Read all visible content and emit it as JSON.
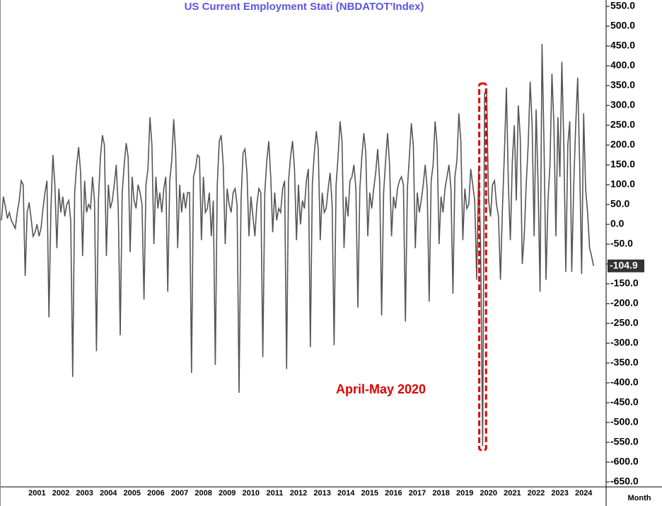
{
  "chart_data": {
    "type": "line",
    "title": "US  Current  Employment  Stati  (NBDATOT'Index)",
    "x_label": "Month",
    "annotation": "April-May 2020",
    "color": "#555555",
    "ylim": [
      -650,
      550
    ],
    "yticks": [
      {
        "value": 550,
        "label": "550.0"
      },
      {
        "value": 500,
        "label": "500.0"
      },
      {
        "value": 450,
        "label": "450.0"
      },
      {
        "value": 400,
        "label": "400.0"
      },
      {
        "value": 350,
        "label": "350.0"
      },
      {
        "value": 300,
        "label": "300.0"
      },
      {
        "value": 250,
        "label": "250.0"
      },
      {
        "value": 200,
        "label": "200.0"
      },
      {
        "value": 150,
        "label": "150.0"
      },
      {
        "value": 100,
        "label": "100.0"
      },
      {
        "value": 50,
        "label": "50.0"
      },
      {
        "value": 0,
        "label": "0.0"
      },
      {
        "value": -50,
        "label": "-50.0"
      },
      {
        "value": -100,
        "label": "-100.0"
      },
      {
        "value": -150,
        "label": "-150.0"
      },
      {
        "value": -200,
        "label": "-200.0"
      },
      {
        "value": -250,
        "label": "-250.0"
      },
      {
        "value": -300,
        "label": "-300.0"
      },
      {
        "value": -350,
        "label": "-350.0"
      },
      {
        "value": -400,
        "label": "-400.0"
      },
      {
        "value": -450,
        "label": "-450.0"
      },
      {
        "value": -500,
        "label": "-500.0"
      },
      {
        "value": -550,
        "label": "-550.0"
      },
      {
        "value": -600,
        "label": "-600.0"
      },
      {
        "value": -650,
        "label": "-650.0"
      }
    ],
    "categories": [
      null,
      null,
      null,
      null,
      null,
      null,
      null,
      null,
      null,
      null,
      null,
      null,
      null,
      null,
      null,
      null,
      null,
      null,
      "2001",
      null,
      null,
      null,
      null,
      null,
      null,
      null,
      null,
      null,
      null,
      null,
      "2002",
      null,
      null,
      null,
      null,
      null,
      null,
      null,
      null,
      null,
      null,
      null,
      "2003",
      null,
      null,
      null,
      null,
      null,
      null,
      null,
      null,
      null,
      null,
      null,
      "2004",
      null,
      null,
      null,
      null,
      null,
      null,
      null,
      null,
      null,
      null,
      null,
      "2005",
      null,
      null,
      null,
      null,
      null,
      null,
      null,
      null,
      null,
      null,
      null,
      "2006",
      null,
      null,
      null,
      null,
      null,
      null,
      null,
      null,
      null,
      null,
      null,
      "2007",
      null,
      null,
      null,
      null,
      null,
      null,
      null,
      null,
      null,
      null,
      null,
      "2008",
      null,
      null,
      null,
      null,
      null,
      null,
      null,
      null,
      null,
      null,
      null,
      "2009",
      null,
      null,
      null,
      null,
      null,
      null,
      null,
      null,
      null,
      null,
      null,
      "2010",
      null,
      null,
      null,
      null,
      null,
      null,
      null,
      null,
      null,
      null,
      null,
      "2011",
      null,
      null,
      null,
      null,
      null,
      null,
      null,
      null,
      null,
      null,
      null,
      "2012",
      null,
      null,
      null,
      null,
      null,
      null,
      null,
      null,
      null,
      null,
      null,
      "2013",
      null,
      null,
      null,
      null,
      null,
      null,
      null,
      null,
      null,
      null,
      null,
      "2014",
      null,
      null,
      null,
      null,
      null,
      null,
      null,
      null,
      null,
      null,
      null,
      "2015",
      null,
      null,
      null,
      null,
      null,
      null,
      null,
      null,
      null,
      null,
      null,
      "2016",
      null,
      null,
      null,
      null,
      null,
      null,
      null,
      null,
      null,
      null,
      null,
      "2017",
      null,
      null,
      null,
      null,
      null,
      null,
      null,
      null,
      null,
      null,
      null,
      "2018",
      null,
      null,
      null,
      null,
      null,
      null,
      null,
      null,
      null,
      null,
      null,
      "2019",
      null,
      null,
      null,
      null,
      null,
      null,
      null,
      null,
      null,
      null,
      null,
      "2020",
      null,
      null,
      null,
      null,
      null,
      null,
      null,
      null,
      null,
      null,
      null,
      "2021",
      null,
      null,
      null,
      null,
      null,
      null,
      null,
      null,
      null,
      null,
      null,
      "2022",
      null,
      null,
      null,
      null,
      null,
      null,
      null,
      null,
      null,
      null,
      null,
      "2023",
      null,
      null,
      null,
      null,
      null,
      null,
      null,
      null,
      null,
      null,
      null,
      "2024",
      null,
      null,
      null,
      null,
      null
    ],
    "values": [
      10,
      70,
      45,
      15,
      30,
      10,
      0,
      -10,
      30,
      60,
      110,
      100,
      -130,
      30,
      55,
      15,
      -30,
      -20,
      0,
      -30,
      -10,
      40,
      80,
      110,
      -235,
      40,
      175,
      100,
      -60,
      90,
      30,
      70,
      20,
      50,
      60,
      10,
      -385,
      80,
      150,
      195,
      130,
      -80,
      110,
      30,
      50,
      40,
      120,
      60,
      -320,
      60,
      170,
      225,
      200,
      -80,
      100,
      40,
      60,
      100,
      150,
      40,
      -280,
      80,
      150,
      205,
      170,
      -70,
      120,
      60,
      40,
      100,
      80,
      50,
      -190,
      100,
      140,
      270,
      200,
      -50,
      120,
      40,
      80,
      30,
      90,
      120,
      -170,
      110,
      160,
      265,
      180,
      -60,
      100,
      30,
      80,
      40,
      80,
      80,
      -375,
      120,
      140,
      175,
      170,
      -40,
      120,
      30,
      40,
      80,
      -30,
      60,
      -355,
      100,
      210,
      225,
      150,
      -50,
      90,
      50,
      30,
      80,
      90,
      50,
      -425,
      60,
      180,
      190,
      130,
      -30,
      70,
      20,
      -30,
      50,
      90,
      80,
      -335,
      80,
      160,
      210,
      120,
      -20,
      80,
      10,
      40,
      30,
      90,
      110,
      -365,
      110,
      170,
      210,
      140,
      -40,
      100,
      0,
      60,
      40,
      110,
      140,
      -310,
      100,
      180,
      235,
      190,
      -40,
      80,
      30,
      40,
      90,
      130,
      50,
      -305,
      100,
      170,
      260,
      210,
      -60,
      70,
      20,
      110,
      120,
      150,
      90,
      -210,
      90,
      170,
      230,
      180,
      -30,
      80,
      40,
      90,
      130,
      190,
      110,
      -230,
      80,
      160,
      230,
      150,
      -30,
      70,
      40,
      90,
      110,
      120,
      100,
      -245,
      90,
      170,
      255,
      200,
      -60,
      80,
      30,
      60,
      100,
      150,
      90,
      -195,
      110,
      150,
      260,
      200,
      -50,
      70,
      30,
      90,
      120,
      150,
      90,
      -175,
      120,
      160,
      280,
      210,
      -40,
      90,
      40,
      50,
      140,
      100,
      60,
      -140,
      140,
      -60,
      -560,
      330,
      340,
      60,
      20,
      100,
      110,
      50,
      20,
      -140,
      40,
      180,
      345,
      100,
      -40,
      160,
      250,
      60,
      300,
      220,
      -100,
      -30,
      100,
      200,
      360,
      250,
      -30,
      290,
      100,
      -170,
      455,
      200,
      -140,
      60,
      150,
      380,
      250,
      -30,
      270,
      120,
      410,
      200,
      -120,
      200,
      260,
      -120,
      100,
      250,
      370,
      150,
      -125,
      280,
      90,
      30,
      -60,
      -80,
      -104.9
    ]
  }
}
